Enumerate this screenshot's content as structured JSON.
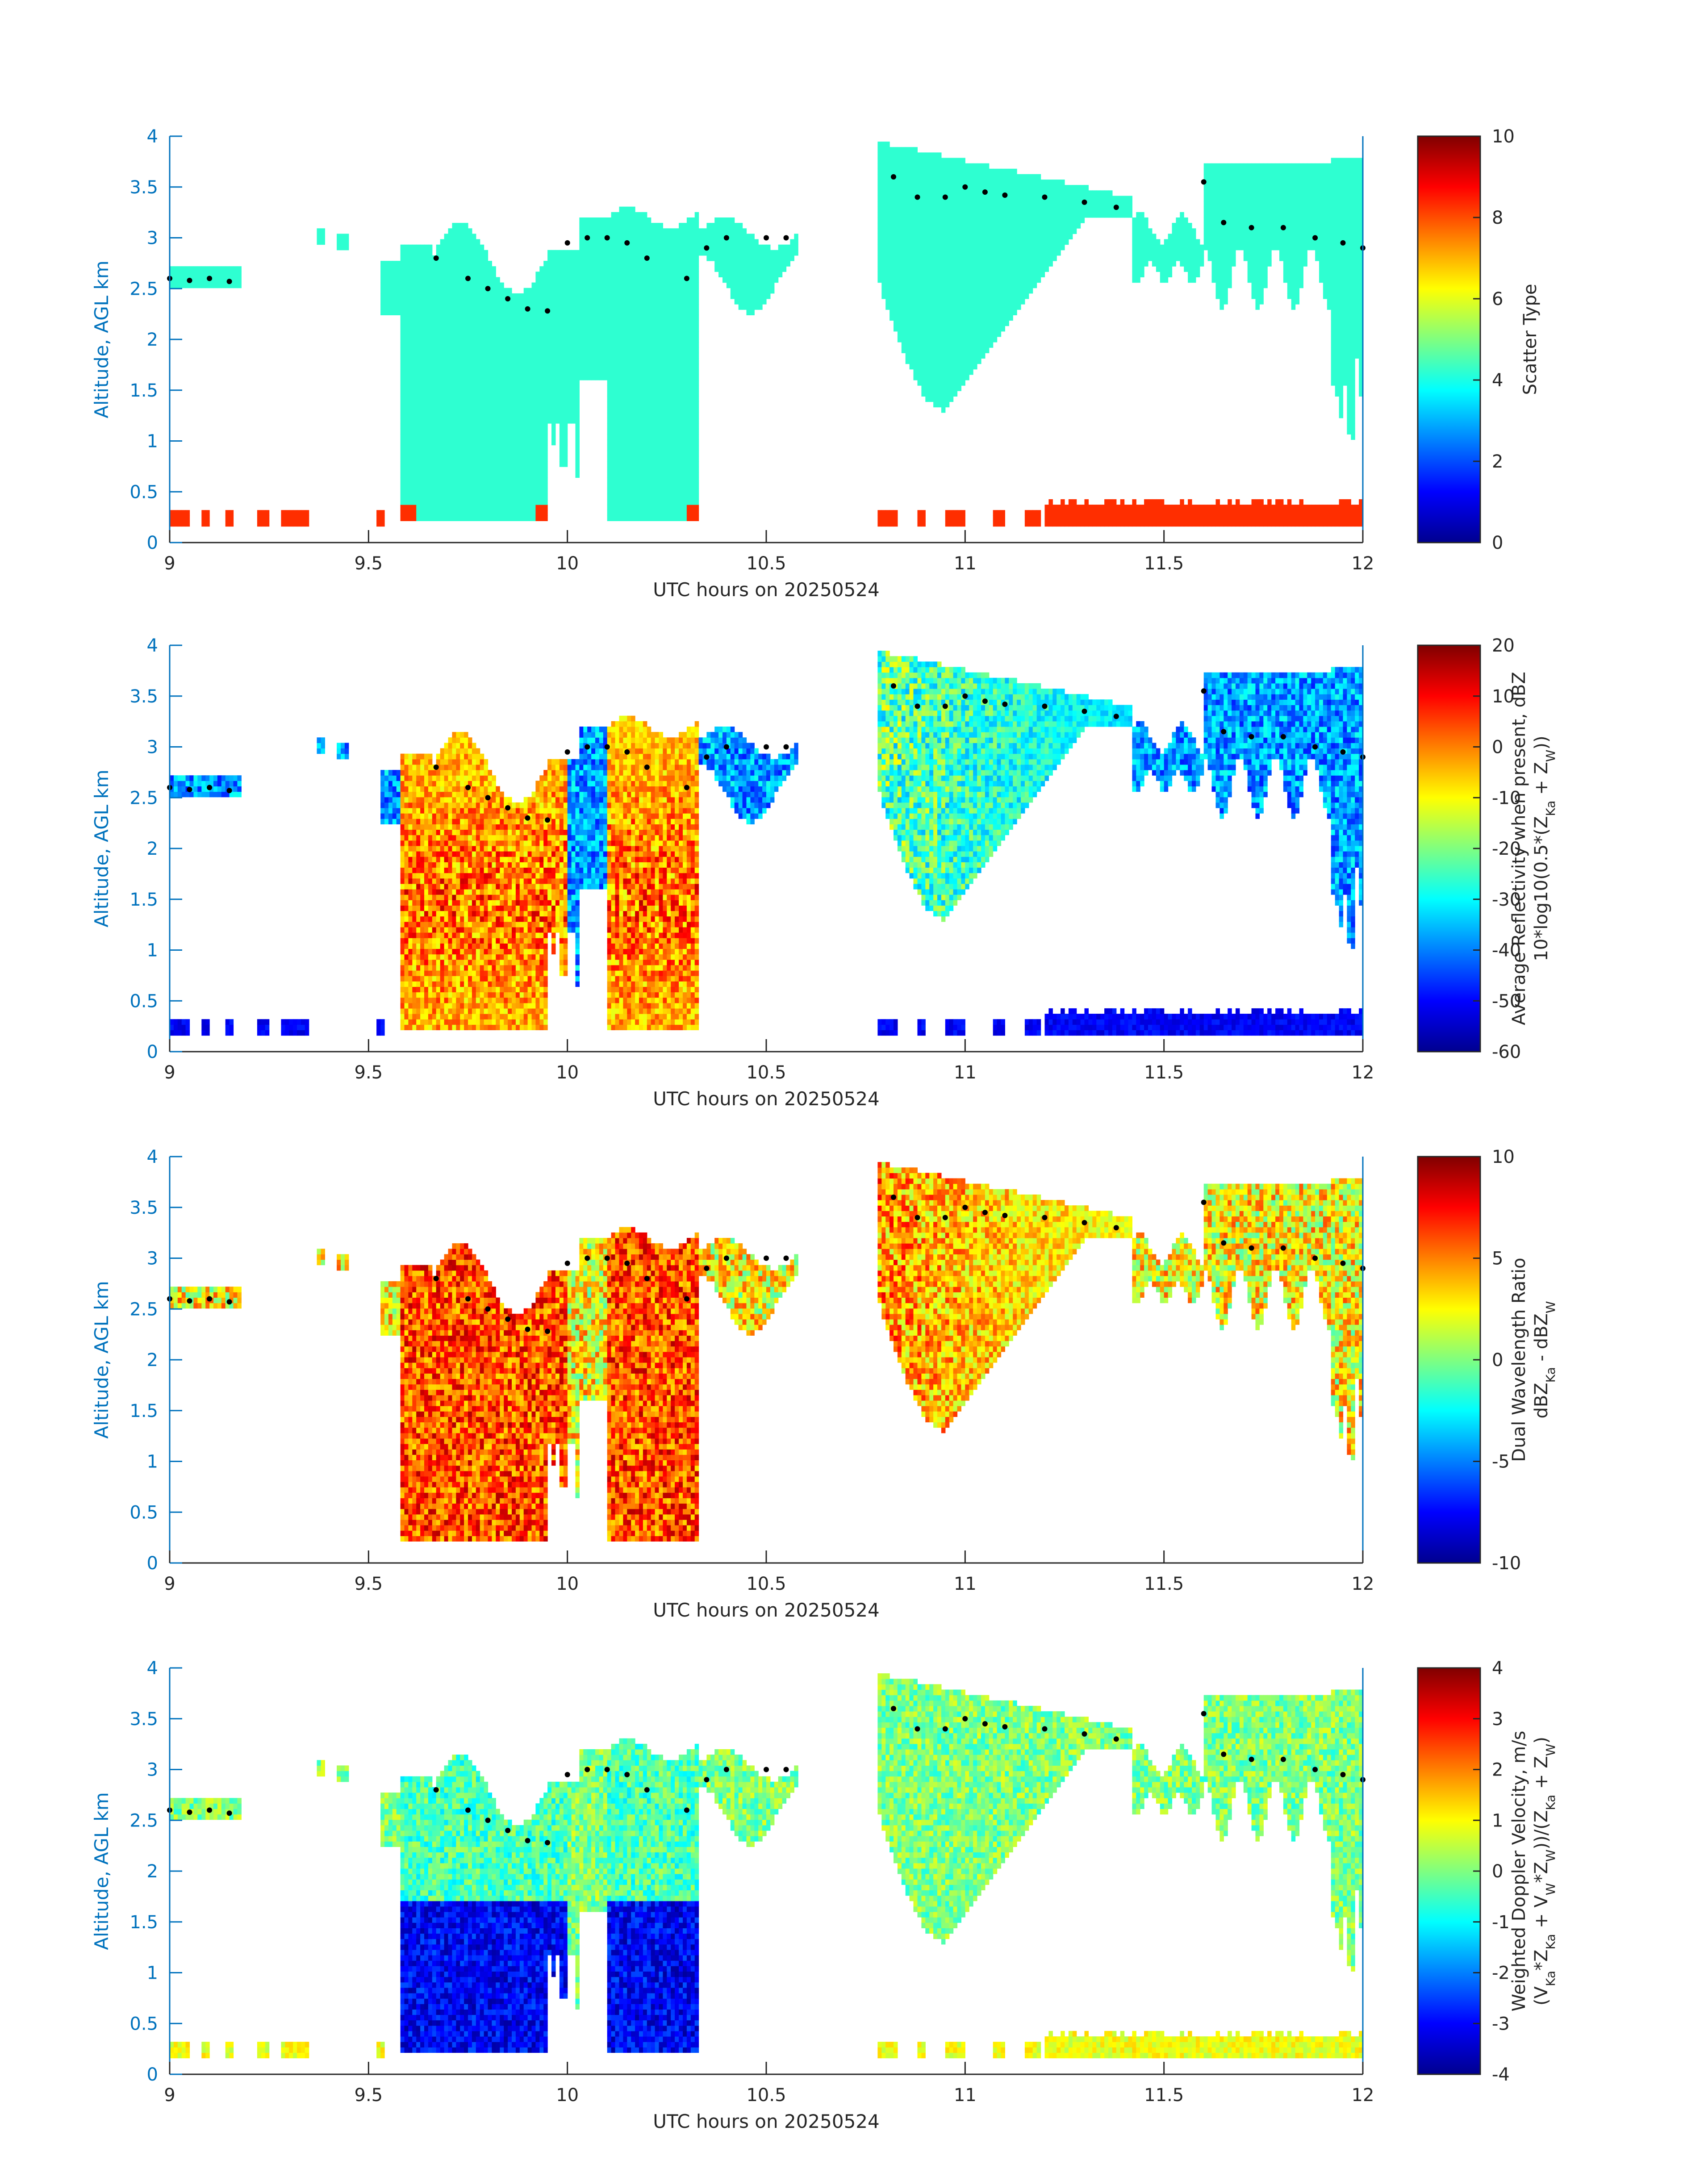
{
  "figure_title": "",
  "chart_data": [
    {
      "type": "heatmap",
      "panel": 1,
      "title": "",
      "xlabel": "UTC hours on 20250524",
      "ylabel": "Altitude, AGL km",
      "xlim": [
        9,
        12
      ],
      "ylim": [
        0,
        4
      ],
      "xticks": [
        "9",
        "9.5",
        "10",
        "10.5",
        "11",
        "11.5",
        "12"
      ],
      "yticks": [
        "0",
        "0.5",
        "1",
        "1.5",
        "2",
        "2.5",
        "3",
        "3.5",
        "4"
      ],
      "colorbar": {
        "label": "Scatter Type",
        "clim": [
          0,
          10
        ],
        "ticks": [
          "0",
          "2",
          "4",
          "6",
          "8",
          "10"
        ],
        "colormap": "jet"
      },
      "dominant_values": [
        {
          "region": "cloud columns and upper cloud layers",
          "value": 4
        },
        {
          "region": "near-surface layer and lowest part of the 9.6-10.3 h columns",
          "value": 8
        }
      ],
      "cloud_regions": [
        {
          "x": [
            9.0,
            9.18
          ],
          "y": [
            2.5,
            2.72
          ]
        },
        {
          "x": [
            9.55,
            9.95
          ],
          "y": [
            0.2,
            3.2
          ]
        },
        {
          "x": [
            10.0,
            10.35
          ],
          "y": [
            0.2,
            3.3
          ]
        },
        {
          "x": [
            10.35,
            10.58
          ],
          "y": [
            2.2,
            3.15
          ]
        },
        {
          "x": [
            10.78,
            11.42
          ],
          "y": [
            1.3,
            3.97
          ]
        },
        {
          "x": [
            11.42,
            11.6
          ],
          "y": [
            2.6,
            3.2
          ]
        },
        {
          "x": [
            11.6,
            12.0
          ],
          "y": [
            0.9,
            3.8
          ]
        }
      ],
      "near_surface_layer": {
        "x": [
          11.2,
          12.0
        ],
        "y": [
          0.18,
          0.45
        ]
      },
      "cloud_top_markers": [
        [
          9.0,
          2.6
        ],
        [
          9.05,
          2.58
        ],
        [
          9.1,
          2.6
        ],
        [
          9.15,
          2.57
        ],
        [
          9.67,
          2.8
        ],
        [
          9.75,
          2.6
        ],
        [
          9.8,
          2.5
        ],
        [
          9.85,
          2.4
        ],
        [
          9.9,
          2.3
        ],
        [
          9.95,
          2.28
        ],
        [
          10.0,
          2.95
        ],
        [
          10.05,
          3.0
        ],
        [
          10.1,
          3.0
        ],
        [
          10.15,
          2.95
        ],
        [
          10.2,
          2.8
        ],
        [
          10.3,
          2.6
        ],
        [
          10.35,
          2.9
        ],
        [
          10.4,
          3.0
        ],
        [
          10.5,
          3.0
        ],
        [
          10.55,
          3.0
        ],
        [
          10.82,
          3.6
        ],
        [
          10.88,
          3.4
        ],
        [
          10.95,
          3.4
        ],
        [
          11.0,
          3.5
        ],
        [
          11.05,
          3.45
        ],
        [
          11.1,
          3.42
        ],
        [
          11.2,
          3.4
        ],
        [
          11.3,
          3.35
        ],
        [
          11.38,
          3.3
        ],
        [
          11.6,
          3.55
        ],
        [
          11.65,
          3.15
        ],
        [
          11.72,
          3.1
        ],
        [
          11.8,
          3.1
        ],
        [
          11.88,
          3.0
        ],
        [
          11.95,
          2.95
        ],
        [
          12.0,
          2.9
        ]
      ]
    },
    {
      "type": "heatmap",
      "panel": 2,
      "title": "",
      "xlabel": "UTC hours on 20250524",
      "ylabel": "Altitude, AGL km",
      "xlim": [
        9,
        12
      ],
      "ylim": [
        0,
        4
      ],
      "xticks": [
        "9",
        "9.5",
        "10",
        "10.5",
        "11",
        "11.5",
        "12"
      ],
      "yticks": [
        "0",
        "0.5",
        "1",
        "1.5",
        "2",
        "2.5",
        "3",
        "3.5",
        "4"
      ],
      "colorbar": {
        "label_lines": [
          "Average Reflectivity when present, dBZ",
          "10*log10(0.5*(Z",
          "Ka",
          " + Z",
          "W",
          "))"
        ],
        "clim": [
          -60,
          20
        ],
        "ticks": [
          "-60",
          "-50",
          "-40",
          "-30",
          "-20",
          "-10",
          "0",
          "10",
          "20"
        ],
        "colormap": "jet"
      },
      "approx_values": [
        {
          "region": "precipitation shafts 9.6-10.0 h",
          "dBZ": 10
        },
        {
          "region": "precipitation shafts 10.1-10.3 h",
          "dBZ": 12
        },
        {
          "region": "ice cloud 10.8-11.4 h core",
          "dBZ": -15
        },
        {
          "region": "ice cloud edges",
          "dBZ": -40
        },
        {
          "region": "near-surface clutter layer",
          "dBZ": -55
        }
      ]
    },
    {
      "type": "heatmap",
      "panel": 3,
      "title": "",
      "xlabel": "UTC hours on 20250524",
      "ylabel": "Altitude, AGL km",
      "xlim": [
        9,
        12
      ],
      "ylim": [
        0,
        4
      ],
      "xticks": [
        "9",
        "9.5",
        "10",
        "10.5",
        "11",
        "11.5",
        "12"
      ],
      "yticks": [
        "0",
        "0.5",
        "1",
        "1.5",
        "2",
        "2.5",
        "3",
        "3.5",
        "4"
      ],
      "colorbar": {
        "label_lines": [
          "Dual Wavelength Ratio",
          "dBZ",
          "Ka",
          " - dBZ",
          "W"
        ],
        "clim": [
          -10,
          10
        ],
        "ticks": [
          "-10",
          "-5",
          "0",
          "5",
          "10"
        ],
        "colormap": "jet"
      },
      "approx_values": [
        {
          "region": "precipitation shafts 9.6-10.0 h",
          "dB": 8
        },
        {
          "region": "precipitation shafts 10.1-10.3 h",
          "dB": 6
        },
        {
          "region": "ice cloud core near 10.9 h",
          "dB": 7
        },
        {
          "region": "ice cloud edges",
          "dB": 3
        }
      ]
    },
    {
      "type": "heatmap",
      "panel": 4,
      "title": "",
      "xlabel": "UTC hours on 20250524",
      "ylabel": "Altitude, AGL km",
      "xlim": [
        9,
        12
      ],
      "ylim": [
        0,
        4
      ],
      "xticks": [
        "9",
        "9.5",
        "10",
        "10.5",
        "11",
        "11.5",
        "12"
      ],
      "yticks": [
        "0",
        "0.5",
        "1",
        "1.5",
        "2",
        "2.5",
        "3",
        "3.5",
        "4"
      ],
      "colorbar": {
        "label_lines": [
          "Weighted Doppler Velocity, m/s",
          "(V",
          "Ka",
          "*Z",
          "Ka",
          " + V",
          "W",
          "*Z",
          "W",
          "))/(Z",
          "Ka",
          " + Z",
          "W",
          ")"
        ],
        "clim": [
          -4,
          4
        ],
        "ticks": [
          "-4",
          "-3",
          "-2",
          "-1",
          "0",
          "1",
          "2",
          "3",
          "4"
        ],
        "colormap": "jet"
      },
      "approx_values": [
        {
          "region": "rain below 1.7 km, 9.6-10.3 h",
          "m_s": -3.5
        },
        {
          "region": "cloud above 1.7 km, 9.6-10.5 h",
          "m_s": -1
        },
        {
          "region": "ice cloud 10.8-11.4 h",
          "m_s": -0.8
        },
        {
          "region": "near-surface layer",
          "m_s": 0.5
        }
      ]
    }
  ]
}
